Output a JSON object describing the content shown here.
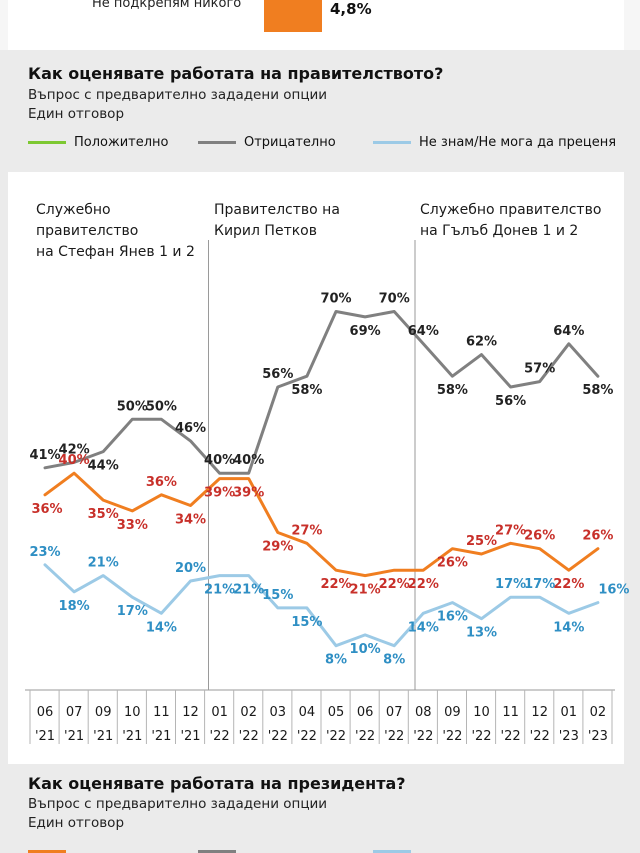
{
  "top_panel": {
    "label": "Не подкрепям никого",
    "value": "4,8%",
    "bar_color": "#f07e20"
  },
  "government": {
    "title": "Как оценявате работата на правителството?",
    "sub1": "Въпрос с предварително зададени опции",
    "sub2": "Един отговор",
    "legend": [
      "Положително",
      "Отрицателно",
      "Не знам/Не мога да преценя"
    ]
  },
  "president": {
    "title": "Как оценявате работата на президента?",
    "sub1": "Въпрос с предварително зададени опции",
    "sub2": "Един отговор"
  },
  "colors": {
    "positive_legend": "#7dc832",
    "positive": "#f07e20",
    "negative": "#808080",
    "dontknow": "#9ccae6",
    "positive_label": "#c8302a",
    "dontknow_label": "#2f8fc4"
  },
  "chart_data": {
    "type": "line",
    "categories": [
      "06 '21",
      "07 '21",
      "09 '21",
      "10 '21",
      "11 '21",
      "12 '21",
      "01 '22",
      "02 '22",
      "03 '22",
      "04 '22",
      "05 '22",
      "06 '22",
      "07 '22",
      "08 '22",
      "09 '22",
      "10 '22",
      "11 '22",
      "12 '22",
      "01 '23",
      "02 '23"
    ],
    "series": [
      {
        "name": "Положително",
        "values": [
          36,
          40,
          35,
          33,
          36,
          34,
          39,
          39,
          29,
          27,
          22,
          21,
          22,
          22,
          26,
          25,
          27,
          26,
          22,
          26
        ]
      },
      {
        "name": "Отрицателно",
        "values": [
          41,
          42,
          44,
          50,
          50,
          46,
          40,
          40,
          56,
          58,
          70,
          69,
          70,
          64,
          58,
          62,
          56,
          57,
          64,
          58
        ]
      },
      {
        "name": "Не знам/Не мога да преценя",
        "values": [
          23,
          18,
          21,
          17,
          14,
          20,
          21,
          21,
          15,
          15,
          8,
          10,
          8,
          14,
          16,
          13,
          17,
          17,
          14,
          16
        ]
      }
    ],
    "periods": [
      {
        "label_lines": [
          "Служебно",
          "правителство",
          "на Стефан Янев 1 и 2"
        ]
      },
      {
        "label_lines": [
          "Правителство на",
          "Кирил Петков"
        ]
      },
      {
        "label_lines": [
          "Служебно правителство",
          "на Гълъб Донев 1 и 2"
        ]
      }
    ]
  }
}
